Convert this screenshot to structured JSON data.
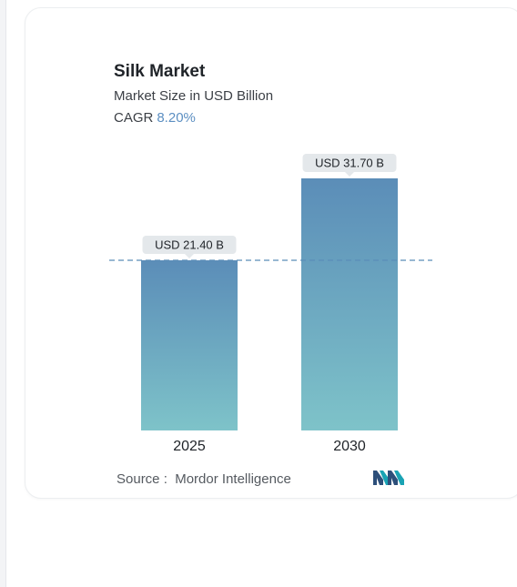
{
  "chart_data": {
    "type": "bar",
    "title": "Silk Market",
    "subtitle": "Market Size in USD Billion",
    "cagr_label": "CAGR",
    "cagr_value": "8.20%",
    "categories": [
      "2025",
      "2030"
    ],
    "values": [
      21.4,
      31.7
    ],
    "data_labels": [
      "USD 21.40 B",
      "USD 31.70 B"
    ],
    "xlabel": "",
    "ylabel": "",
    "grid": false,
    "reference_line": 21.4,
    "colors": {
      "bar_top": "#5b8db8",
      "bar_bottom": "#7ec3c9",
      "label_bg": "#e4e8eb",
      "ref_line": "#5b8db8"
    }
  },
  "footer": {
    "source_label": "Source :",
    "source_name": "Mordor Intelligence",
    "logo_icon": "mordor-intelligence-logo"
  }
}
